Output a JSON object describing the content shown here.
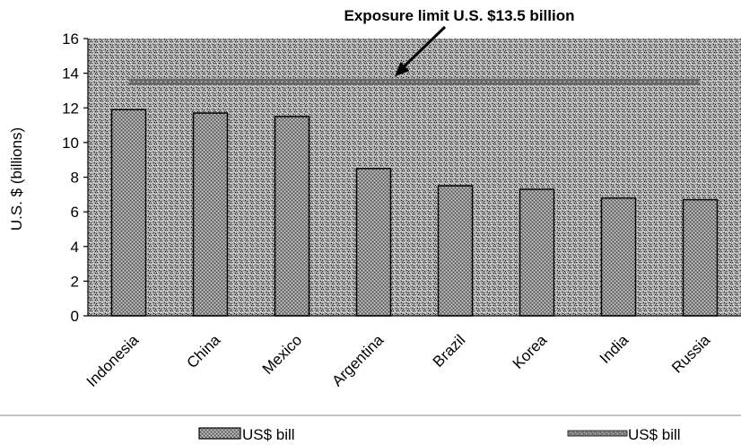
{
  "chart_data": {
    "type": "bar",
    "categories": [
      "Indonesia",
      "China",
      "Mexico",
      "Argentina",
      "Brazil",
      "Korea",
      "India",
      "Russia"
    ],
    "series": [
      {
        "name": "US$ bill",
        "type": "bar",
        "values": [
          11.9,
          11.7,
          11.5,
          8.5,
          7.5,
          7.3,
          6.8,
          6.7
        ]
      },
      {
        "name": "US$ bill",
        "type": "line",
        "values": [
          13.5,
          13.5,
          13.5,
          13.5,
          13.5,
          13.5,
          13.5,
          13.5
        ]
      }
    ],
    "ylabel": "U.S. $ (billions)",
    "xlabel": "",
    "ylim": [
      0,
      16
    ],
    "yticks": [
      0,
      2,
      4,
      6,
      8,
      10,
      12,
      14,
      16
    ],
    "annotation": {
      "text": "Exposure limit U.S. $13.5 billion",
      "points_to_value": 13.5
    },
    "legend_position": "bottom",
    "grid": false,
    "colors": {
      "bar_fill": "#8a8a8a",
      "plot_background": "#9a9a9a",
      "limit_line": "#6a6a6a"
    }
  }
}
